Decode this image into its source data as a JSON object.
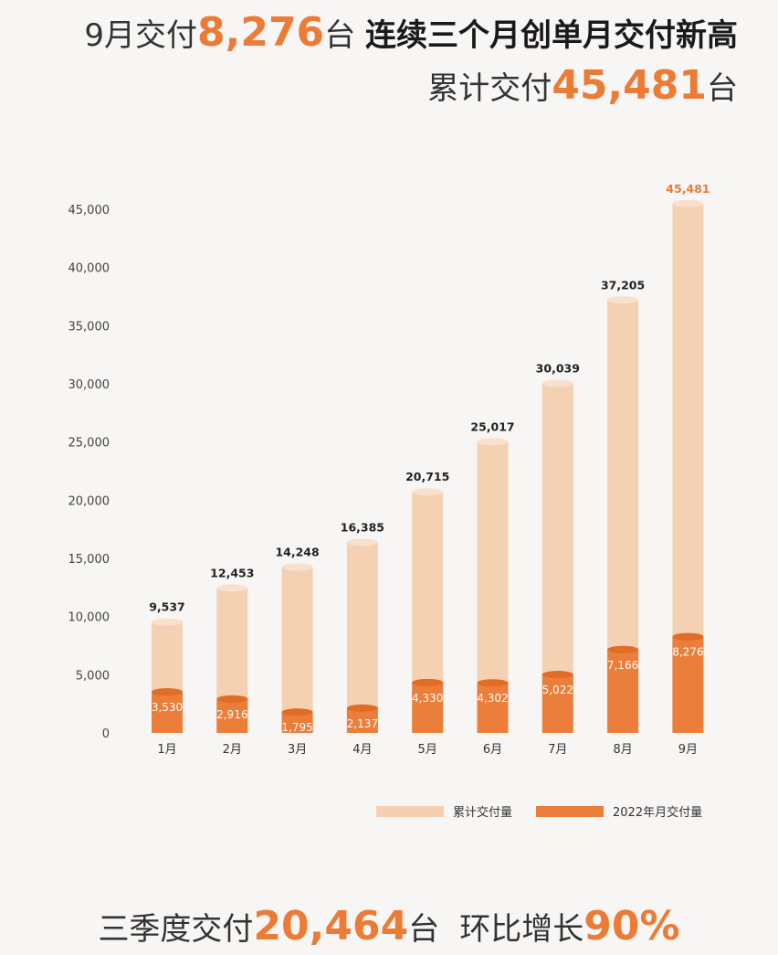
{
  "header": {
    "line1_prefix": "9月交付",
    "line1_number": "8,276",
    "line1_unit": "台",
    "line1_suffix": "连续三个月创单月交付新高",
    "line2_prefix": "累计交付",
    "line2_number": "45,481",
    "line2_unit": "台"
  },
  "footer": {
    "prefix": "三季度交付",
    "number": "20,464",
    "unit": "台",
    "growth_label": "环比增长",
    "growth_value": "90%"
  },
  "colors": {
    "accent": "#ec7b35",
    "cumulative": "#f5cfb0",
    "monthly": "#ea7e3a"
  },
  "chart_data": {
    "type": "bar",
    "categories": [
      "1月",
      "2月",
      "3月",
      "4月",
      "5月",
      "6月",
      "7月",
      "8月",
      "9月"
    ],
    "series": [
      {
        "name": "累计交付量",
        "values": [
          9537,
          12453,
          14248,
          16385,
          20715,
          25017,
          30039,
          37205,
          45481
        ],
        "labels": [
          "9,537",
          "12,453",
          "14,248",
          "16,385",
          "20,715",
          "25,017",
          "30,039",
          "37,205",
          "45,481"
        ]
      },
      {
        "name": "2022年月交付量",
        "values": [
          3530,
          2916,
          1795,
          2137,
          4330,
          4302,
          5022,
          7166,
          8276
        ],
        "labels": [
          "3,530",
          "2,916",
          "1,795",
          "2,137",
          "4,330",
          "4,302",
          "5,022",
          "7,166",
          "8,276"
        ]
      }
    ],
    "ylim": [
      0,
      45000
    ],
    "yticks": [
      0,
      5000,
      10000,
      15000,
      20000,
      25000,
      30000,
      35000,
      40000,
      45000
    ],
    "ytick_labels": [
      "0",
      "5,000",
      "10,000",
      "15,000",
      "20,000",
      "25,000",
      "30,000",
      "35,000",
      "40,000",
      "45,000"
    ],
    "grid": false,
    "legend_position": "bottom-right"
  }
}
